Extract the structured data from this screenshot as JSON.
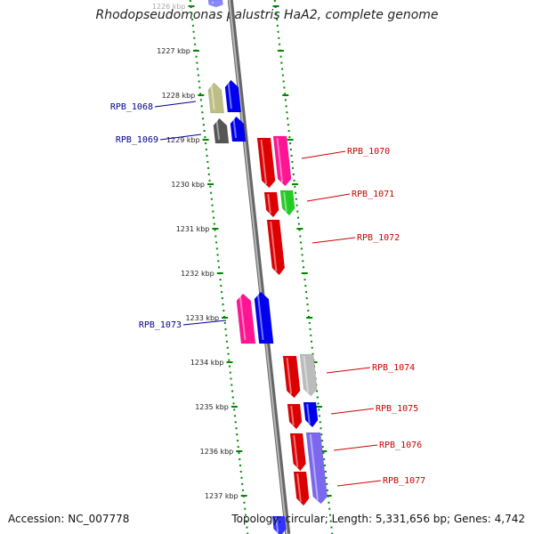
{
  "title": "Rhodopseudomonas palustris HaA2, complete genome",
  "footer": {
    "accession": "Accession: NC_007778",
    "summary": "Topology: circular; Length: 5,331,656 bp; Genes: 4,742"
  },
  "ticks": [
    {
      "label": "1226 kbp",
      "faded": true
    },
    {
      "label": "1227 kbp"
    },
    {
      "label": "1228 kbp"
    },
    {
      "label": "1229 kbp"
    },
    {
      "label": "1230 kbp"
    },
    {
      "label": "1231 kbp"
    },
    {
      "label": "1232 kbp"
    },
    {
      "label": "1233 kbp"
    },
    {
      "label": "1234 kbp"
    },
    {
      "label": "1235 kbp"
    },
    {
      "label": "1236 kbp"
    },
    {
      "label": "1237 kbp"
    }
  ],
  "genes": {
    "minus": [
      {
        "name": "RPB_1068",
        "color": "#0000ee"
      },
      {
        "name": "RPB_1069",
        "color": "#0000ee"
      },
      {
        "name": "RPB_1073",
        "color": "#0000ee"
      }
    ],
    "plus": [
      {
        "name": "RPB_1070",
        "color": "#dd0000"
      },
      {
        "name": "RPB_1071",
        "color": "#dd0000"
      },
      {
        "name": "RPB_1072",
        "color": "#dd0000"
      },
      {
        "name": "RPB_1074",
        "color": "#dd0000"
      },
      {
        "name": "RPB_1075",
        "color": "#dd0000"
      },
      {
        "name": "RPB_1076",
        "color": "#dd0000"
      },
      {
        "name": "RPB_1077",
        "color": "#dd0000"
      }
    ]
  },
  "colors": {
    "backbone": "#888888",
    "tick": "#008800",
    "minus_label": "#00008b",
    "plus_label": "#cc0000"
  }
}
